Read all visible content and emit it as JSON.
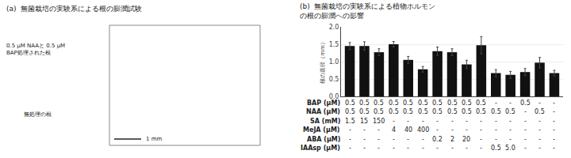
{
  "chart_data": {
    "type": "bar",
    "title": "(b)  無菌栽培の実験系による植物ホルモン\nの根の膨潤への影響",
    "annotations": [
      "(a)  無菌栽培の実験系による根の膨潤試験",
      "0.5 μM NAAと 0.5 μM\nBAP処理された根",
      "無処理の根",
      "1 mm"
    ],
    "ylabel": "根の直径（mm）",
    "values": [
      1.45,
      1.45,
      1.27,
      1.5,
      1.05,
      0.78,
      1.3,
      1.27,
      0.92,
      1.47,
      0.67,
      0.62,
      0.7,
      0.97,
      0.67
    ],
    "errors": [
      0.1,
      0.12,
      0.1,
      0.08,
      0.1,
      0.08,
      0.12,
      0.1,
      0.12,
      0.25,
      0.1,
      0.1,
      0.1,
      0.15,
      0.08
    ],
    "color": "#111111",
    "ylim": [
      0.0,
      2.0
    ],
    "yticks": [
      {
        "value": 0.0,
        "label": "0.0"
      },
      0.5,
      {
        "value": 1.0,
        "label": "1.0"
      },
      1.5,
      {
        "value": 2.0,
        "label": "2.0"
      }
    ],
    "grid": true,
    "tick_labels": "y",
    "table_rows": [
      [
        "BAP (μM)",
        "0.5",
        "0.5",
        "0.5",
        "0.5",
        "0.5",
        "0.5",
        "0.5",
        "0.5",
        "0.5",
        "0.5",
        "-",
        "-",
        "0.5",
        "-",
        "-"
      ],
      [
        "NAA (μM)",
        "0.5",
        "0.5",
        "0.5",
        "0.5",
        "0.5",
        "0.5",
        "0.5",
        "0.5",
        "0.5",
        "0.5",
        "0.5",
        "0.5",
        "-",
        "0.5",
        "-"
      ],
      [
        "SA (mM)",
        "1.5",
        "15",
        "150",
        "-",
        "-",
        "-",
        "-",
        "-",
        "-",
        "-",
        "-",
        "-",
        "-",
        "-",
        "-"
      ],
      [
        "MeJA (μM)",
        "-",
        "-",
        "-",
        "4",
        "40",
        "400",
        "-",
        "-",
        "-",
        "-",
        "-",
        "-",
        "-",
        "-",
        "-"
      ],
      [
        "ABA (μM)",
        "-",
        "-",
        "-",
        "-",
        "-",
        "-",
        "0.2",
        "2",
        "20",
        "-",
        "-",
        "-",
        "-",
        "-",
        "-"
      ],
      [
        "IAAsp (μM)",
        "-",
        "-",
        "-",
        "-",
        "-",
        "-",
        "-",
        "-",
        "-",
        "-",
        "0.5",
        "5.0",
        "-",
        "-",
        "-"
      ]
    ]
  }
}
